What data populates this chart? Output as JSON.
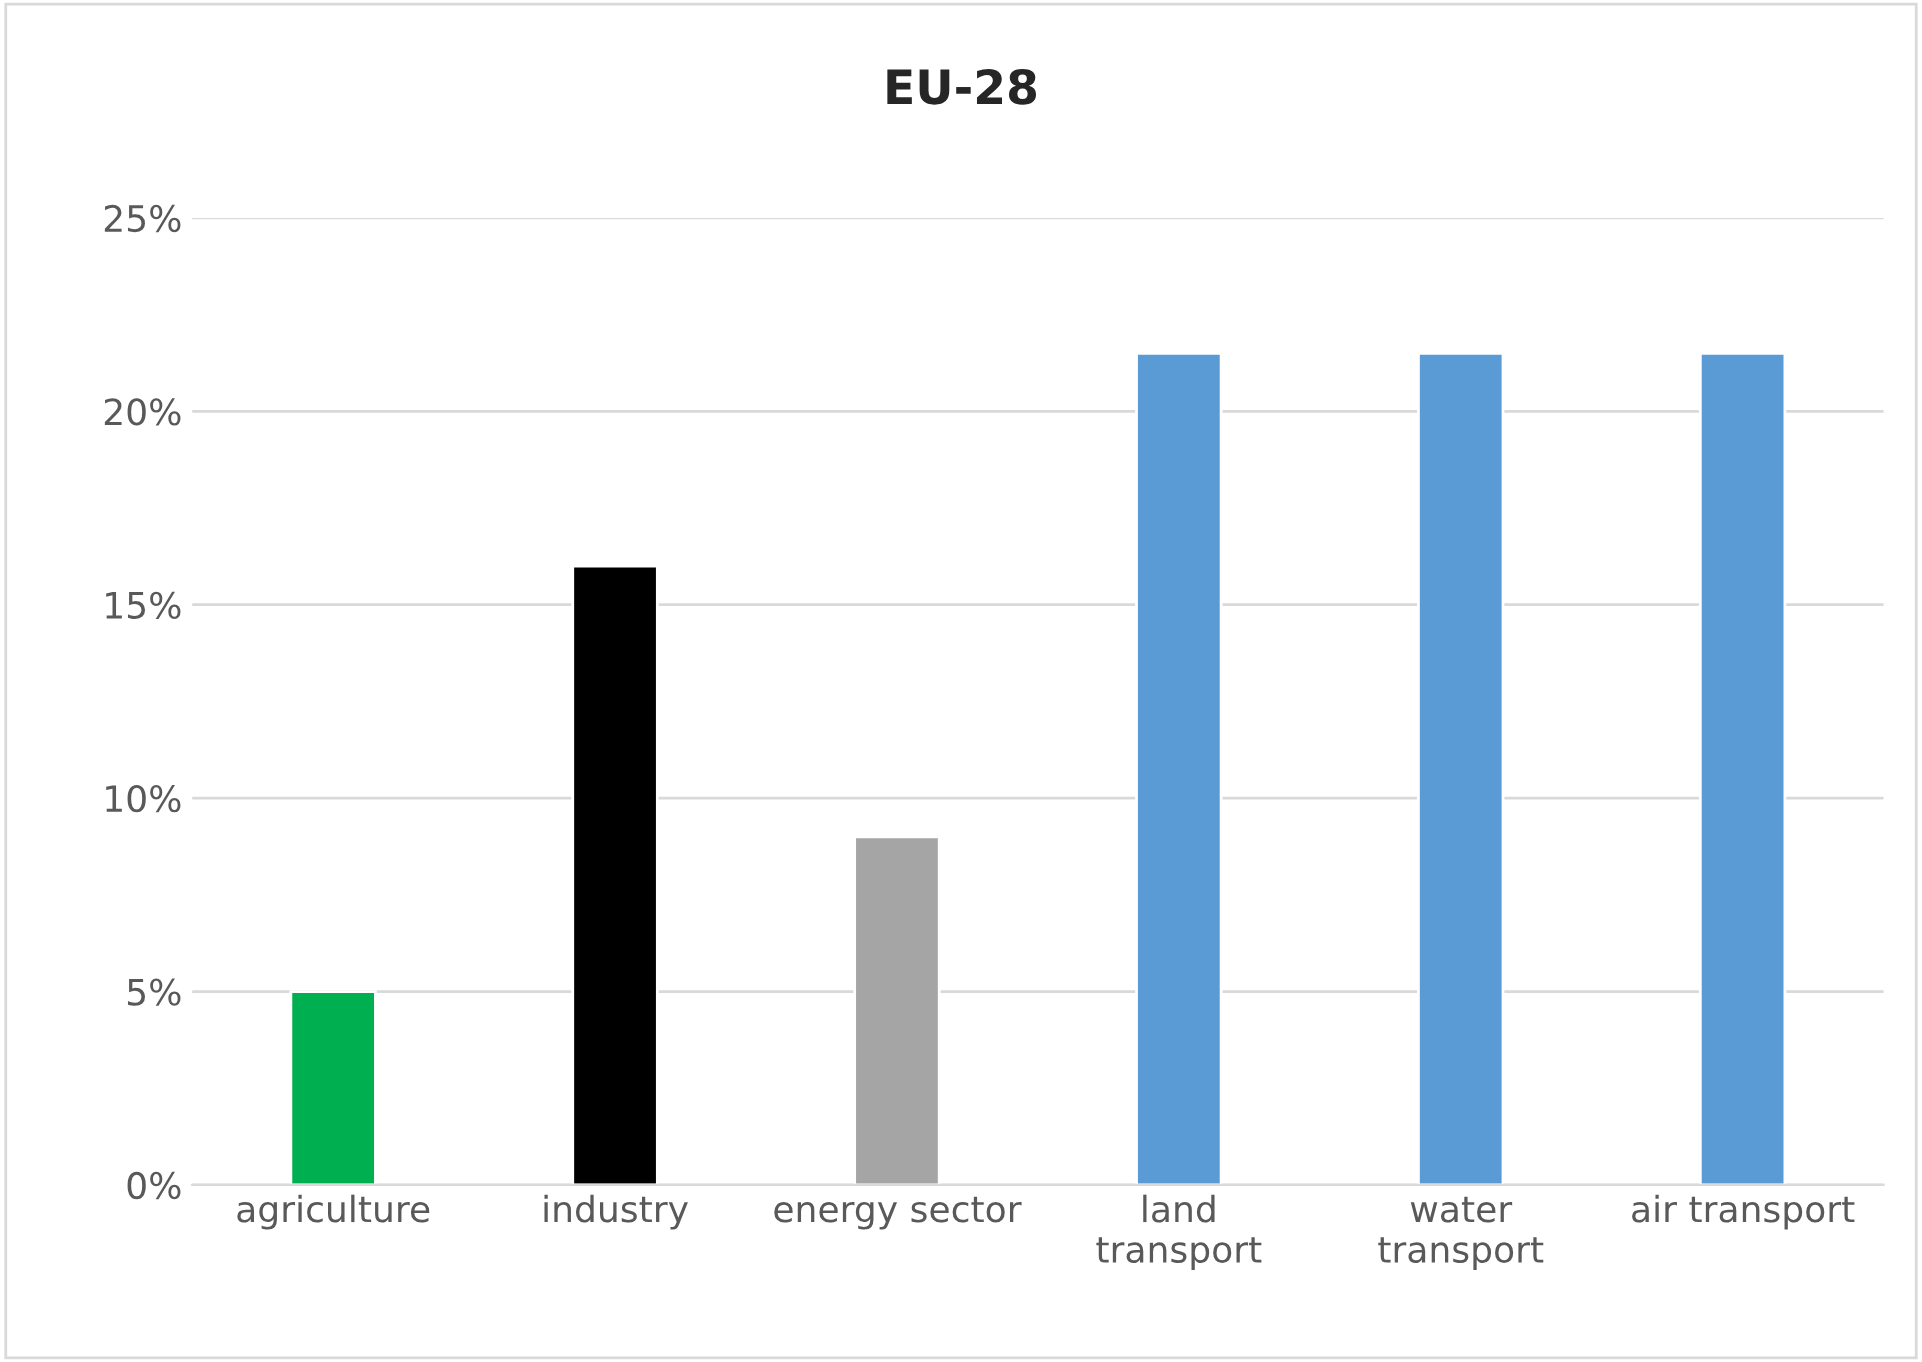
{
  "chart_data": {
    "type": "bar",
    "title": "EU-28",
    "categories": [
      "agriculture",
      "industry",
      "energy sector",
      "land\ntransport",
      "water\ntransport",
      "air transport"
    ],
    "values": [
      5,
      16,
      9,
      21.5,
      21.5,
      21.5
    ],
    "colors": [
      "#00b050",
      "#000000",
      "#a5a5a5",
      "#5b9bd5",
      "#5b9bd5",
      "#5b9bd5"
    ],
    "ylim": [
      0,
      25
    ],
    "yticks": [
      {
        "value": 0,
        "label": "0%"
      },
      {
        "value": 5,
        "label": "5%"
      },
      {
        "value": 10,
        "label": "10%"
      },
      {
        "value": 15,
        "label": "15%"
      },
      {
        "value": 20,
        "label": "20%"
      },
      {
        "value": 25,
        "label": "25%"
      }
    ],
    "grid": "y",
    "legend": false
  }
}
